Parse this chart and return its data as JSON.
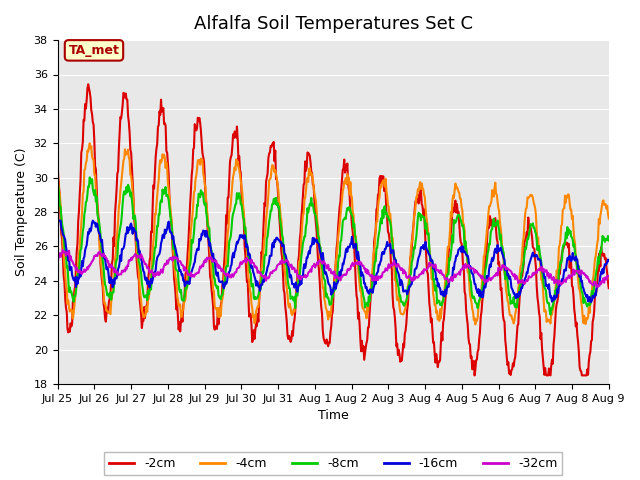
{
  "title": "Alfalfa Soil Temperatures Set C",
  "xlabel": "Time",
  "ylabel": "Soil Temperature (C)",
  "ylim": [
    18,
    38
  ],
  "yticks": [
    18,
    20,
    22,
    24,
    26,
    28,
    30,
    32,
    34,
    36,
    38
  ],
  "xtick_labels": [
    "Jul 25",
    "Jul 26",
    "Jul 27",
    "Jul 28",
    "Jul 29",
    "Jul 30",
    "Jul 31",
    "Aug 1",
    "Aug 2",
    "Aug 3",
    "Aug 4",
    "Aug 5",
    "Aug 6",
    "Aug 7",
    "Aug 8",
    "Aug 9"
  ],
  "series": [
    {
      "label": "-2cm",
      "color": "#dd0000",
      "lw": 1.5
    },
    {
      "label": "-4cm",
      "color": "#ff8800",
      "lw": 1.5
    },
    {
      "label": "-8cm",
      "color": "#00cc00",
      "lw": 1.5
    },
    {
      "label": "-16cm",
      "color": "#0000dd",
      "lw": 1.5
    },
    {
      "label": "-32cm",
      "color": "#cc00cc",
      "lw": 1.5
    }
  ],
  "annotation_text": "TA_met",
  "annotation_color": "#aa0000",
  "annotation_bg": "#ffffcc",
  "bg_color": "#e8e8e8",
  "title_fontsize": 13,
  "label_fontsize": 9,
  "tick_fontsize": 8,
  "legend_fontsize": 9
}
